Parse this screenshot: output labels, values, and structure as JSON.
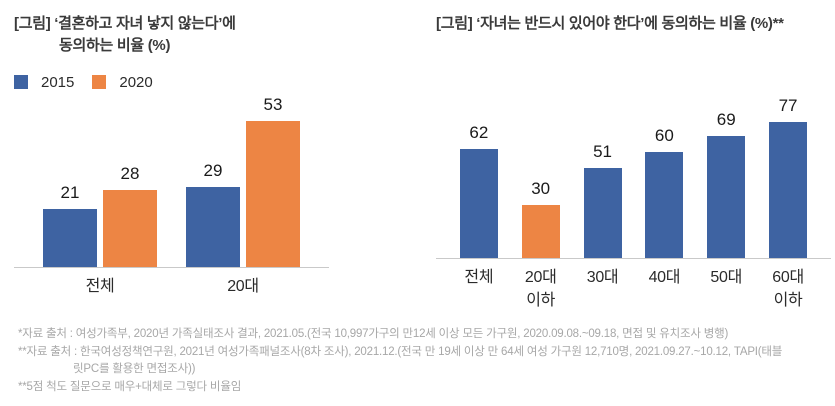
{
  "colors": {
    "series_blue": "#3E63A2",
    "series_orange": "#ED8544",
    "axis_line": "#C9C9C9",
    "title_text": "#3A3A3A",
    "value_label_text": "#1A1A1A",
    "footnote_text": "#A7A7A7",
    "background": "#FFFFFF"
  },
  "chart_data": [
    {
      "type": "bar",
      "title": "[그림] ‘결혼하고 자녀 낳지 않는다’에 동의하는 비율 (%)",
      "title_lines": [
        "[그림] ‘결혼하고 자녀 낳지 않는다’에",
        "동의하는 비율 (%)"
      ],
      "categories": [
        "전체",
        "20대"
      ],
      "series": [
        {
          "name": "2015",
          "color": "#3E63A2",
          "values": [
            21,
            29
          ]
        },
        {
          "name": "2020",
          "color": "#ED8544",
          "values": [
            28,
            53
          ]
        }
      ],
      "xlabel": "",
      "ylabel": "",
      "ylim": [
        0,
        58
      ],
      "grid": false,
      "data_labels": true,
      "legend_position": "top-left"
    },
    {
      "type": "bar",
      "title": "[그림] ‘자녀는 반드시 있어야 한다’에 동의하는 비율 (%)**",
      "categories": [
        "전체",
        "20대 이하",
        "30대",
        "40대",
        "50대",
        "60대 이하"
      ],
      "values": [
        62,
        30,
        51,
        60,
        69,
        77
      ],
      "bar_colors": [
        "#3E63A2",
        "#ED8544",
        "#3E63A2",
        "#3E63A2",
        "#3E63A2",
        "#3E63A2"
      ],
      "xlabel": "",
      "ylabel": "",
      "ylim": [
        0,
        85
      ],
      "grid": false,
      "data_labels": true,
      "legend_position": "none"
    }
  ],
  "footnotes": [
    {
      "text": "*자료 출처 : 여성가족부, 2020년 가족실태조사 결과, 2021.05.(전국 10,997가구의 만12세 이상 모든 가구원, 2020.09.08.~09.18, 면접 및 유치조사 병행)",
      "indent": false
    },
    {
      "text": "**자료 출처 : 한국여성정책연구원, 2021년 여성가족패널조사(8차 조사), 2021.12.(전국 만 19세 이상 만 64세 여성 가구원 12,710명, 2021.09.27.~10.12, TAPI(태블",
      "indent": false
    },
    {
      "text": "릿PC를 활용한 면접조사))",
      "indent": true
    },
    {
      "text": "**5점 척도 질문으로 매우+대체로 그렇다 비율임",
      "indent": false
    }
  ]
}
